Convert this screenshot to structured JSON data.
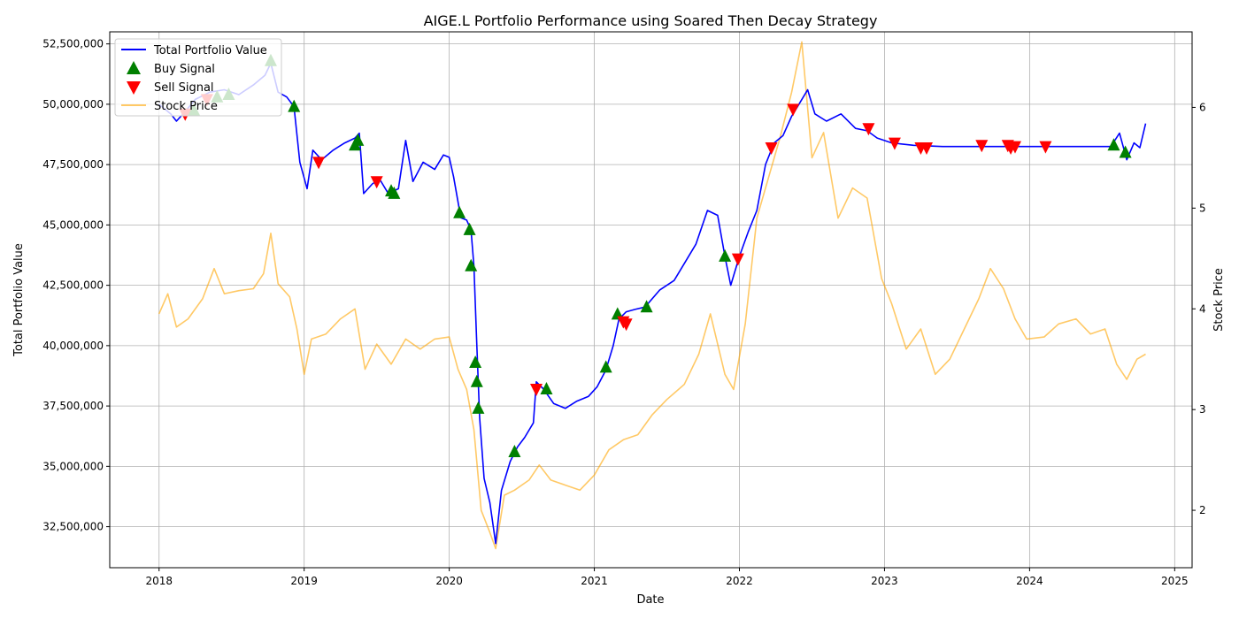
{
  "chart_data": {
    "type": "line",
    "title": "AIGE.L Portfolio Performance using Soared Then Decay Strategy",
    "xlabel": "Date",
    "ylabel": "Total Portfolio Value",
    "ylabel_right": "Stock Price",
    "xlim": [
      2017.66,
      2025.12
    ],
    "ylim": [
      30800000,
      53000000
    ],
    "ylim_right": [
      1.43,
      6.75
    ],
    "x_ticks": [
      2018,
      2019,
      2020,
      2021,
      2022,
      2023,
      2024,
      2025
    ],
    "x_tick_labels": [
      "2018",
      "2019",
      "2020",
      "2021",
      "2022",
      "2023",
      "2024",
      "2025"
    ],
    "y_ticks": [
      32500000,
      35000000,
      37500000,
      40000000,
      42500000,
      45000000,
      47500000,
      50000000,
      52500000
    ],
    "y_tick_labels": [
      "32,500,000",
      "35,000,000",
      "37,500,000",
      "40,000,000",
      "42,500,000",
      "45,000,000",
      "47,500,000",
      "50,000,000",
      "52,500,000"
    ],
    "y_right_ticks": [
      2,
      3,
      4,
      5,
      6
    ],
    "y_right_tick_labels": [
      "2",
      "3",
      "4",
      "5",
      "6"
    ],
    "grid": true,
    "legend_position": "top-left",
    "colors": {
      "portfolio": "#0000ff",
      "stock": "#ffa500",
      "buy": "#008000",
      "sell": "#ff0000",
      "grid": "#b0b0b0"
    },
    "series": [
      {
        "name": "Total Portfolio Value",
        "axis": "left",
        "points": [
          [
            2018.0,
            50000000
          ],
          [
            2018.08,
            49600000
          ],
          [
            2018.12,
            49300000
          ],
          [
            2018.18,
            49700000
          ],
          [
            2018.25,
            50200000
          ],
          [
            2018.35,
            50500000
          ],
          [
            2018.45,
            50600000
          ],
          [
            2018.55,
            50400000
          ],
          [
            2018.65,
            50800000
          ],
          [
            2018.73,
            51200000
          ],
          [
            2018.77,
            51700000
          ],
          [
            2018.82,
            50500000
          ],
          [
            2018.88,
            50300000
          ],
          [
            2018.93,
            49900000
          ],
          [
            2018.97,
            47600000
          ],
          [
            2019.02,
            46500000
          ],
          [
            2019.06,
            48100000
          ],
          [
            2019.12,
            47700000
          ],
          [
            2019.2,
            48100000
          ],
          [
            2019.28,
            48400000
          ],
          [
            2019.35,
            48600000
          ],
          [
            2019.38,
            48800000
          ],
          [
            2019.41,
            46300000
          ],
          [
            2019.47,
            46700000
          ],
          [
            2019.52,
            46900000
          ],
          [
            2019.58,
            46300000
          ],
          [
            2019.65,
            46500000
          ],
          [
            2019.7,
            48500000
          ],
          [
            2019.75,
            46800000
          ],
          [
            2019.82,
            47600000
          ],
          [
            2019.9,
            47300000
          ],
          [
            2019.96,
            47900000
          ],
          [
            2020.0,
            47800000
          ],
          [
            2020.03,
            47000000
          ],
          [
            2020.08,
            45300000
          ],
          [
            2020.12,
            45200000
          ],
          [
            2020.15,
            44800000
          ],
          [
            2020.17,
            43300000
          ],
          [
            2020.19,
            40000000
          ],
          [
            2020.21,
            37000000
          ],
          [
            2020.24,
            34500000
          ],
          [
            2020.28,
            33500000
          ],
          [
            2020.32,
            31800000
          ],
          [
            2020.36,
            34000000
          ],
          [
            2020.42,
            35200000
          ],
          [
            2020.47,
            35800000
          ],
          [
            2020.52,
            36200000
          ],
          [
            2020.58,
            36800000
          ],
          [
            2020.6,
            38500000
          ],
          [
            2020.65,
            38200000
          ],
          [
            2020.72,
            37600000
          ],
          [
            2020.8,
            37400000
          ],
          [
            2020.88,
            37700000
          ],
          [
            2020.96,
            37900000
          ],
          [
            2021.02,
            38300000
          ],
          [
            2021.08,
            39000000
          ],
          [
            2021.13,
            40000000
          ],
          [
            2021.17,
            41100000
          ],
          [
            2021.22,
            41400000
          ],
          [
            2021.28,
            41500000
          ],
          [
            2021.35,
            41600000
          ],
          [
            2021.45,
            42300000
          ],
          [
            2021.55,
            42700000
          ],
          [
            2021.62,
            43400000
          ],
          [
            2021.7,
            44200000
          ],
          [
            2021.78,
            45600000
          ],
          [
            2021.85,
            45400000
          ],
          [
            2021.9,
            43700000
          ],
          [
            2021.94,
            42500000
          ],
          [
            2022.0,
            43700000
          ],
          [
            2022.06,
            44700000
          ],
          [
            2022.12,
            45600000
          ],
          [
            2022.18,
            47500000
          ],
          [
            2022.24,
            48400000
          ],
          [
            2022.3,
            48700000
          ],
          [
            2022.36,
            49500000
          ],
          [
            2022.42,
            50100000
          ],
          [
            2022.47,
            50600000
          ],
          [
            2022.52,
            49600000
          ],
          [
            2022.6,
            49300000
          ],
          [
            2022.7,
            49600000
          ],
          [
            2022.8,
            49000000
          ],
          [
            2022.88,
            48900000
          ],
          [
            2022.95,
            48600000
          ],
          [
            2023.05,
            48400000
          ],
          [
            2023.2,
            48300000
          ],
          [
            2023.4,
            48250000
          ],
          [
            2023.7,
            48250000
          ],
          [
            2024.0,
            48250000
          ],
          [
            2024.3,
            48250000
          ],
          [
            2024.56,
            48250000
          ],
          [
            2024.62,
            48800000
          ],
          [
            2024.67,
            47700000
          ],
          [
            2024.72,
            48400000
          ],
          [
            2024.76,
            48200000
          ],
          [
            2024.8,
            49200000
          ]
        ]
      },
      {
        "name": "Stock Price",
        "axis": "right",
        "points": [
          [
            2018.0,
            3.95
          ],
          [
            2018.06,
            4.15
          ],
          [
            2018.12,
            3.82
          ],
          [
            2018.2,
            3.9
          ],
          [
            2018.3,
            4.1
          ],
          [
            2018.38,
            4.4
          ],
          [
            2018.45,
            4.15
          ],
          [
            2018.55,
            4.18
          ],
          [
            2018.65,
            4.2
          ],
          [
            2018.72,
            4.35
          ],
          [
            2018.77,
            4.75
          ],
          [
            2018.82,
            4.25
          ],
          [
            2018.9,
            4.12
          ],
          [
            2018.95,
            3.8
          ],
          [
            2019.0,
            3.35
          ],
          [
            2019.05,
            3.7
          ],
          [
            2019.15,
            3.75
          ],
          [
            2019.25,
            3.9
          ],
          [
            2019.35,
            4.0
          ],
          [
            2019.42,
            3.4
          ],
          [
            2019.5,
            3.65
          ],
          [
            2019.6,
            3.45
          ],
          [
            2019.7,
            3.7
          ],
          [
            2019.8,
            3.6
          ],
          [
            2019.9,
            3.7
          ],
          [
            2020.0,
            3.72
          ],
          [
            2020.06,
            3.4
          ],
          [
            2020.12,
            3.2
          ],
          [
            2020.17,
            2.8
          ],
          [
            2020.22,
            2.0
          ],
          [
            2020.28,
            1.78
          ],
          [
            2020.32,
            1.62
          ],
          [
            2020.38,
            2.15
          ],
          [
            2020.45,
            2.2
          ],
          [
            2020.55,
            2.3
          ],
          [
            2020.62,
            2.45
          ],
          [
            2020.7,
            2.3
          ],
          [
            2020.8,
            2.25
          ],
          [
            2020.9,
            2.2
          ],
          [
            2021.0,
            2.35
          ],
          [
            2021.1,
            2.6
          ],
          [
            2021.2,
            2.7
          ],
          [
            2021.3,
            2.75
          ],
          [
            2021.4,
            2.95
          ],
          [
            2021.5,
            3.1
          ],
          [
            2021.62,
            3.25
          ],
          [
            2021.72,
            3.55
          ],
          [
            2021.8,
            3.95
          ],
          [
            2021.9,
            3.35
          ],
          [
            2021.96,
            3.2
          ],
          [
            2022.04,
            3.85
          ],
          [
            2022.12,
            4.9
          ],
          [
            2022.2,
            5.3
          ],
          [
            2022.28,
            5.7
          ],
          [
            2022.36,
            6.15
          ],
          [
            2022.43,
            6.65
          ],
          [
            2022.5,
            5.5
          ],
          [
            2022.58,
            5.75
          ],
          [
            2022.68,
            4.9
          ],
          [
            2022.78,
            5.2
          ],
          [
            2022.88,
            5.1
          ],
          [
            2022.98,
            4.3
          ],
          [
            2023.05,
            4.05
          ],
          [
            2023.15,
            3.6
          ],
          [
            2023.25,
            3.8
          ],
          [
            2023.35,
            3.35
          ],
          [
            2023.45,
            3.5
          ],
          [
            2023.55,
            3.8
          ],
          [
            2023.65,
            4.1
          ],
          [
            2023.73,
            4.4
          ],
          [
            2023.82,
            4.2
          ],
          [
            2023.9,
            3.9
          ],
          [
            2023.98,
            3.7
          ],
          [
            2024.1,
            3.72
          ],
          [
            2024.2,
            3.85
          ],
          [
            2024.32,
            3.9
          ],
          [
            2024.42,
            3.75
          ],
          [
            2024.52,
            3.8
          ],
          [
            2024.6,
            3.45
          ],
          [
            2024.67,
            3.3
          ],
          [
            2024.74,
            3.5
          ],
          [
            2024.8,
            3.55
          ]
        ]
      },
      {
        "name": "Buy Signal",
        "axis": "left",
        "marker": "triangle-up",
        "points": [
          [
            2018.24,
            49750000
          ],
          [
            2018.4,
            50300000
          ],
          [
            2018.48,
            50400000
          ],
          [
            2018.77,
            51800000
          ],
          [
            2018.93,
            49900000
          ],
          [
            2019.35,
            48300000
          ],
          [
            2019.37,
            48500000
          ],
          [
            2019.6,
            46400000
          ],
          [
            2019.62,
            46300000
          ],
          [
            2020.07,
            45500000
          ],
          [
            2020.14,
            44800000
          ],
          [
            2020.15,
            43300000
          ],
          [
            2020.18,
            39300000
          ],
          [
            2020.19,
            38500000
          ],
          [
            2020.2,
            37400000
          ],
          [
            2020.45,
            35600000
          ],
          [
            2020.67,
            38200000
          ],
          [
            2021.08,
            39100000
          ],
          [
            2021.16,
            41300000
          ],
          [
            2021.36,
            41600000
          ],
          [
            2021.9,
            43700000
          ],
          [
            2024.58,
            48300000
          ],
          [
            2024.66,
            48000000
          ]
        ]
      },
      {
        "name": "Sell Signal",
        "axis": "left",
        "marker": "triangle-down",
        "points": [
          [
            2018.18,
            49600000
          ],
          [
            2018.33,
            50200000
          ],
          [
            2019.1,
            47600000
          ],
          [
            2019.5,
            46800000
          ],
          [
            2020.6,
            38200000
          ],
          [
            2021.2,
            41000000
          ],
          [
            2021.22,
            40900000
          ],
          [
            2021.99,
            43600000
          ],
          [
            2022.22,
            48200000
          ],
          [
            2022.37,
            49800000
          ],
          [
            2022.89,
            49000000
          ],
          [
            2023.07,
            48400000
          ],
          [
            2023.25,
            48200000
          ],
          [
            2023.29,
            48200000
          ],
          [
            2023.67,
            48300000
          ],
          [
            2023.85,
            48300000
          ],
          [
            2023.87,
            48200000
          ],
          [
            2023.9,
            48250000
          ],
          [
            2024.11,
            48250000
          ]
        ]
      }
    ]
  }
}
